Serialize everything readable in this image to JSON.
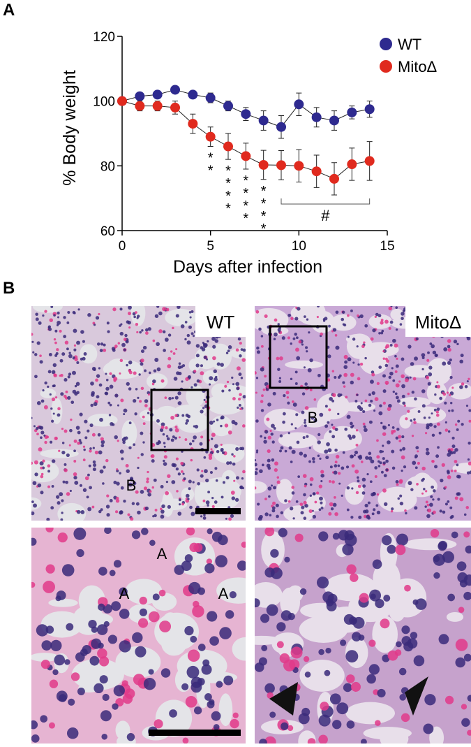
{
  "chart_data": {
    "type": "line",
    "panel_label": "A",
    "x_label": "Days after infection",
    "y_label": "% Body weight",
    "x": [
      0,
      1,
      2,
      3,
      4,
      5,
      6,
      7,
      8,
      9,
      10,
      11,
      12,
      13,
      14
    ],
    "series": [
      {
        "name": "WT",
        "color": "#2e2a8f",
        "values": [
          100,
          101.5,
          102,
          103.5,
          102,
          101,
          98.5,
          96,
          94,
          92,
          99,
          95,
          94,
          96.5,
          97.5
        ],
        "errors": [
          0.5,
          1,
          1,
          1,
          1,
          1.5,
          1.5,
          2,
          3,
          3.5,
          3.5,
          3,
          3,
          2,
          2.5
        ]
      },
      {
        "name": "MitoΔ",
        "color": "#e02a1e",
        "values": [
          100,
          98.5,
          98.5,
          98,
          93,
          89,
          86,
          83,
          80.3,
          80.2,
          80,
          78.3,
          76,
          80.5,
          81.5
        ],
        "errors": [
          0.5,
          1.5,
          1.5,
          2,
          3,
          3,
          4,
          4,
          4.5,
          4.5,
          5,
          5,
          5,
          5,
          6
        ]
      }
    ],
    "xlim": [
      0,
      15
    ],
    "xticks": [
      0,
      5,
      10,
      15
    ],
    "ylim": [
      60,
      120
    ],
    "yticks": [
      60,
      80,
      100,
      120
    ],
    "legend": "top-right",
    "annotations": [
      {
        "x": 5,
        "text": "**"
      },
      {
        "x": 6,
        "text": "****"
      },
      {
        "x": 7,
        "text": "****"
      },
      {
        "x": 8,
        "text": "****"
      }
    ],
    "bracket": {
      "x_start": 9,
      "x_end": 14,
      "text": "#"
    }
  },
  "panel_b": {
    "panel_label": "B",
    "images": [
      {
        "label": "WT",
        "marks": [
          "B"
        ]
      },
      {
        "label": "MitoΔ",
        "marks": [
          "B"
        ]
      },
      {
        "marks": [
          "A",
          "A",
          "A"
        ]
      },
      {
        "marks": []
      }
    ]
  }
}
